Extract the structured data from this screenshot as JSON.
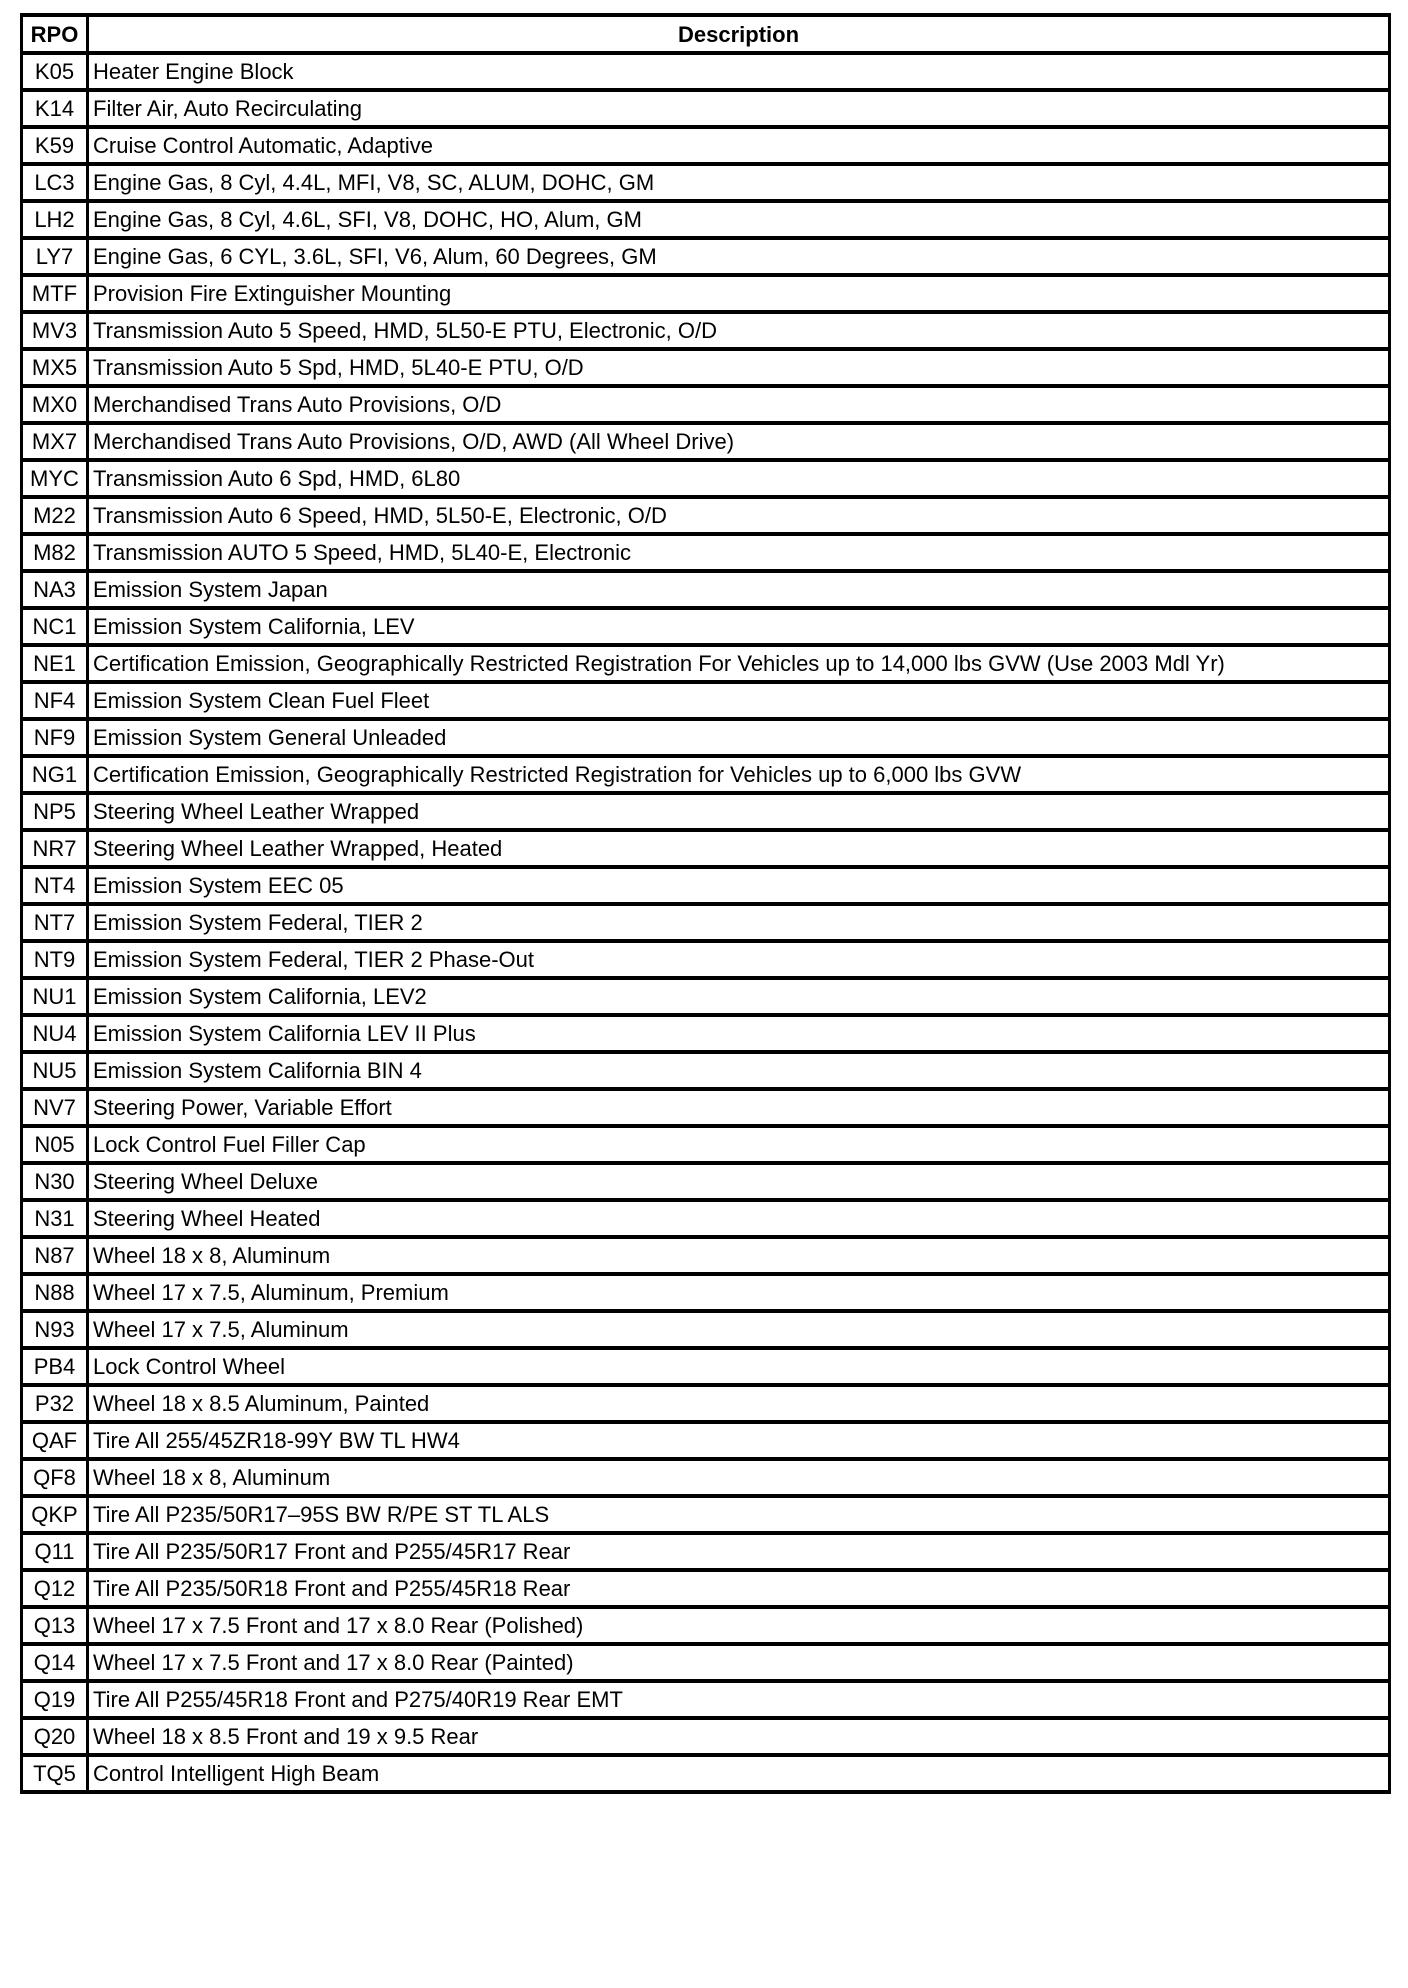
{
  "table": {
    "headers": [
      "RPO",
      "Description"
    ],
    "rows": [
      [
        "K05",
        "Heater Engine Block"
      ],
      [
        "K14",
        "Filter Air, Auto Recirculating"
      ],
      [
        "K59",
        "Cruise Control Automatic, Adaptive"
      ],
      [
        "LC3",
        "Engine Gas, 8 Cyl, 4.4L, MFI, V8, SC, ALUM, DOHC, GM"
      ],
      [
        "LH2",
        "Engine Gas, 8 Cyl, 4.6L, SFI, V8, DOHC, HO, Alum, GM"
      ],
      [
        "LY7",
        "Engine Gas, 6 CYL, 3.6L, SFI, V6, Alum, 60 Degrees, GM"
      ],
      [
        "MTF",
        "Provision Fire Extinguisher Mounting"
      ],
      [
        "MV3",
        "Transmission Auto 5 Speed, HMD, 5L50-E PTU, Electronic, O/D"
      ],
      [
        "MX5",
        "Transmission Auto 5 Spd, HMD, 5L40-E PTU, O/D"
      ],
      [
        "MX0",
        "Merchandised Trans Auto Provisions, O/D"
      ],
      [
        "MX7",
        "Merchandised Trans Auto Provisions, O/D, AWD (All Wheel Drive)"
      ],
      [
        "MYC",
        "Transmission Auto 6 Spd, HMD, 6L80"
      ],
      [
        "M22",
        "Transmission Auto 6 Speed, HMD, 5L50-E, Electronic, O/D"
      ],
      [
        "M82",
        "Transmission AUTO 5 Speed, HMD, 5L40-E, Electronic"
      ],
      [
        "NA3",
        "Emission System Japan"
      ],
      [
        "NC1",
        "Emission System California, LEV"
      ],
      [
        "NE1",
        "Certification Emission, Geographically Restricted Registration For Vehicles up to 14,000 lbs GVW (Use 2003 Mdl Yr)"
      ],
      [
        "NF4",
        "Emission System Clean Fuel Fleet"
      ],
      [
        "NF9",
        "Emission System General Unleaded"
      ],
      [
        "NG1",
        "Certification Emission, Geographically Restricted Registration for Vehicles up to 6,000 lbs GVW"
      ],
      [
        "NP5",
        "Steering Wheel Leather Wrapped"
      ],
      [
        "NR7",
        "Steering Wheel Leather Wrapped, Heated"
      ],
      [
        "NT4",
        "Emission System EEC 05"
      ],
      [
        "NT7",
        "Emission System Federal, TIER 2"
      ],
      [
        "NT9",
        "Emission System Federal, TIER 2 Phase-Out"
      ],
      [
        "NU1",
        "Emission System California, LEV2"
      ],
      [
        "NU4",
        "Emission System California LEV II Plus"
      ],
      [
        "NU5",
        "Emission System California BIN 4"
      ],
      [
        "NV7",
        "Steering Power, Variable Effort"
      ],
      [
        "N05",
        "Lock Control Fuel Filler Cap"
      ],
      [
        "N30",
        "Steering Wheel Deluxe"
      ],
      [
        "N31",
        "Steering Wheel Heated"
      ],
      [
        "N87",
        "Wheel 18 x 8, Aluminum"
      ],
      [
        "N88",
        "Wheel 17 x 7.5, Aluminum, Premium"
      ],
      [
        "N93",
        "Wheel 17 x 7.5, Aluminum"
      ],
      [
        "PB4",
        "Lock Control Wheel"
      ],
      [
        "P32",
        "Wheel 18 x 8.5 Aluminum, Painted"
      ],
      [
        "QAF",
        "Tire All 255/45ZR18-99Y BW TL HW4"
      ],
      [
        "QF8",
        "Wheel 18 x 8, Aluminum"
      ],
      [
        "QKP",
        "Tire All P235/50R17–95S BW R/PE ST TL ALS"
      ],
      [
        "Q11",
        "Tire All P235/50R17 Front and P255/45R17 Rear"
      ],
      [
        "Q12",
        "Tire All P235/50R18 Front and P255/45R18 Rear"
      ],
      [
        "Q13",
        "Wheel 17 x 7.5 Front and 17 x 8.0 Rear (Polished)"
      ],
      [
        "Q14",
        "Wheel 17 x 7.5 Front and 17 x 8.0 Rear (Painted)"
      ],
      [
        "Q19",
        "Tire All P255/45R18 Front and P275/40R19 Rear EMT"
      ],
      [
        "Q20",
        "Wheel 18 x 8.5 Front and 19 x 9.5 Rear"
      ],
      [
        "TQ5",
        "Control Intelligent High Beam"
      ]
    ]
  }
}
